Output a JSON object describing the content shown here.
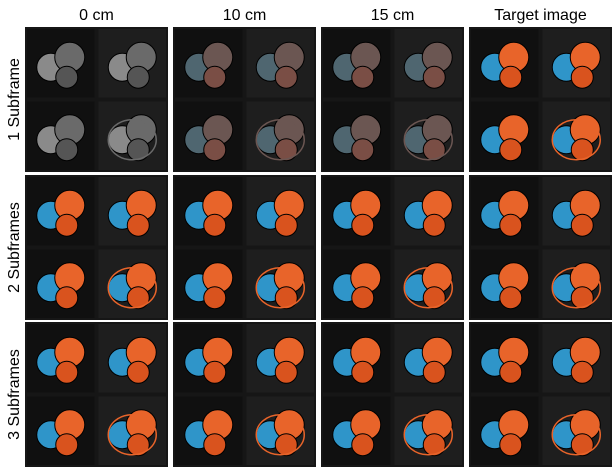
{
  "columns": [
    "0 cm",
    "10 cm",
    "15 cm",
    "Target image"
  ],
  "rows": [
    "1 Subframe",
    "2 Subframes",
    "3 Subframes"
  ]
}
